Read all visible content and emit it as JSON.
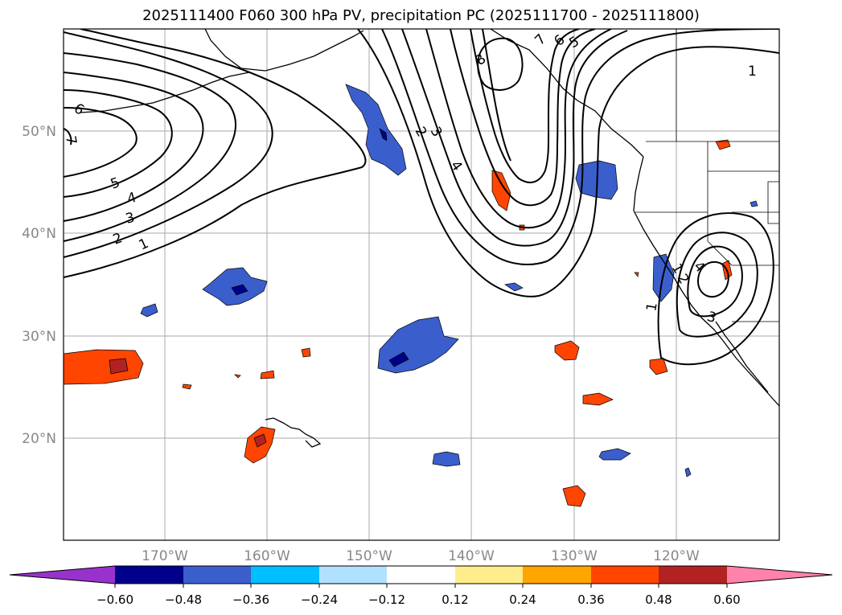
{
  "title": "2025111400 F060 300 hPa PV, precipitation PC (2025111700 - 2025111800)",
  "map": {
    "lon_labels": [
      "170°W",
      "160°W",
      "150°W",
      "140°W",
      "130°W",
      "120°W"
    ],
    "lat_labels": [
      "50°N",
      "40°N",
      "30°N",
      "20°N"
    ],
    "contour_labels": [
      "1",
      "2",
      "3",
      "4",
      "5",
      "6",
      "7",
      "1",
      "2",
      "3",
      "4",
      "8",
      "7",
      "6",
      "5",
      "1",
      "1",
      "2",
      "4",
      "3"
    ]
  },
  "colorbar": {
    "ticks": [
      "−0.60",
      "−0.48",
      "−0.36",
      "−0.24",
      "−0.12",
      "0.12",
      "0.24",
      "0.36",
      "0.48",
      "0.60"
    ],
    "colors": [
      "#9932cc",
      "#00008b",
      "#3a5fcd",
      "#00bfff",
      "#b0e2ff",
      "#ffffff",
      "#ffec8b",
      "#ffa500",
      "#ff4500",
      "#b22222",
      "#ff82ab"
    ]
  },
  "legend_colors": {
    "neg_strong": "#00008b",
    "neg_mid": "#3a5fcd",
    "neg_light": "#00bfff",
    "neg_faint": "#b0e2ff",
    "pos_faint": "#ffec8b",
    "pos_light": "#ffa500",
    "pos_mid": "#ff4500",
    "pos_strong": "#b22222",
    "grid": "#aaaaaa",
    "tick_label": "#888888"
  }
}
